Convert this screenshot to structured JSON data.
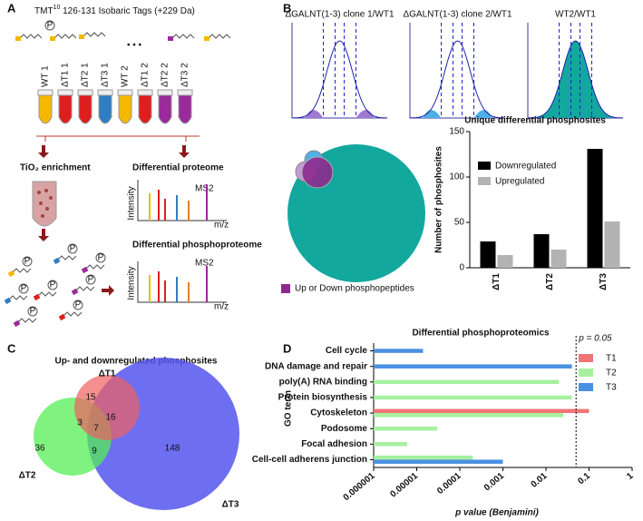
{
  "panel_labels": [
    "A",
    "B",
    "C",
    "D"
  ],
  "panel_a": {
    "tmt_prefix": "TMT",
    "tmt_sup": "10",
    "tmt_rest": " 126-131 Isobaric Tags (+229 Da)",
    "ellipsis": "• • •",
    "tubes": [
      "WT 1",
      "ΔT1 1",
      "ΔT2 1",
      "ΔT3 1",
      "WT 2",
      "ΔT1 2",
      "ΔT2 2",
      "ΔT3 2"
    ],
    "tio2": "TiO₂ enrichment",
    "diff_proteome": "Differential proteome",
    "diff_phospho": "Differential phosphoproteome",
    "ms2": "MS2",
    "intensity": "Intensity",
    "mz": "m/z",
    "phospho": "P"
  },
  "panel_b": {
    "plot_titles": [
      "ΔGALNT(1-3) clone 1/WT1",
      "ΔGALNT(1-3) clone 2/WT1",
      "WT2/WT1"
    ],
    "legend": "Up or Down phosphopeptides"
  },
  "panel_c": {
    "title": "Up- and downregulated phosphosites",
    "sets": [
      "ΔT1",
      "ΔT2",
      "ΔT3"
    ],
    "counts": [
      15,
      16,
      3,
      7,
      36,
      9,
      148
    ]
  },
  "chart_data": [
    {
      "type": "bar",
      "title": "Unique differential phosphosites",
      "ylabel": "Number of phosphosites",
      "categories": [
        "ΔT1",
        "ΔT2",
        "ΔT3"
      ],
      "series": [
        {
          "name": "Downregulated",
          "color": "#000000",
          "values": [
            29,
            37,
            131
          ]
        },
        {
          "name": "Upregulated",
          "color": "#b3b3b3",
          "values": [
            14,
            20,
            51
          ]
        }
      ],
      "ylim": [
        0,
        150
      ],
      "yticks": [
        0,
        50,
        100,
        150
      ]
    },
    {
      "type": "barh",
      "title": "Differential phosphoproteomics",
      "ylabel": "GO term",
      "xlabel": "p value (Benjamini)",
      "categories": [
        "Cell cycle",
        "DNA damage and repair",
        "poly(A) RNA binding",
        "Protein biosynthesis",
        "Cytoskeleton",
        "Podosome",
        "Focal adhesion",
        "Cell-cell adherens junction"
      ],
      "series": [
        {
          "name": "T1",
          "color": "#f07575",
          "values": [
            null,
            null,
            null,
            null,
            0.1,
            null,
            null,
            null
          ]
        },
        {
          "name": "T2",
          "color": "#a6f0a0",
          "values": [
            null,
            null,
            0.02,
            0.04,
            0.025,
            3e-05,
            6e-06,
            0.0002
          ]
        },
        {
          "name": "T3",
          "color": "#4a90e2",
          "values": [
            1.4e-05,
            0.04,
            null,
            null,
            null,
            null,
            null,
            0.001
          ]
        }
      ],
      "xscale": "log",
      "xlim": [
        1e-06,
        1
      ],
      "xticks": [
        1e-06,
        1e-05,
        0.0001,
        0.001,
        0.01,
        0.1,
        1
      ],
      "reference_line": {
        "value": 0.05,
        "label": "p = 0.05"
      }
    }
  ]
}
